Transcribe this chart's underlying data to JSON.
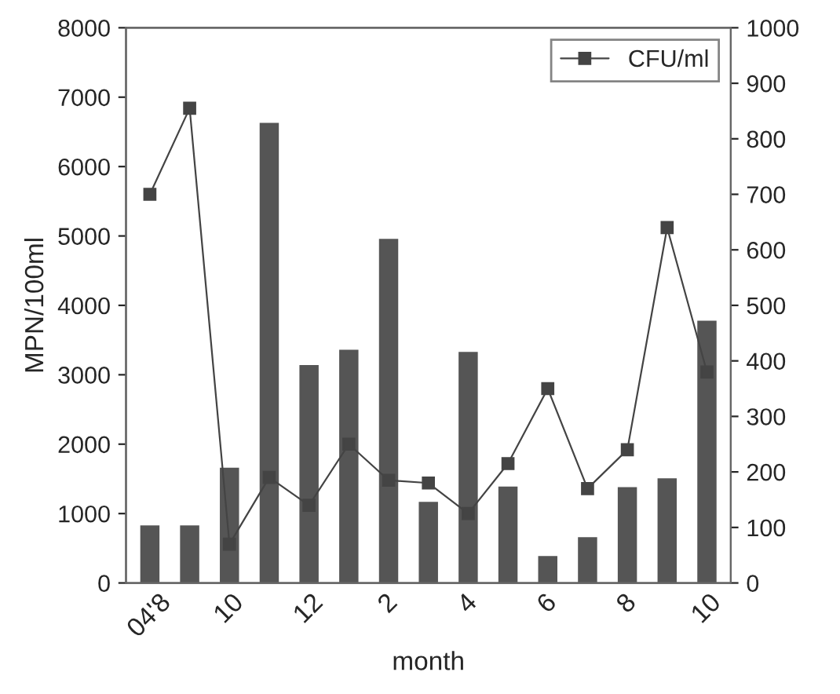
{
  "chart_data": {
    "type": "bar",
    "xlabel": "month",
    "ylabel": "MPN/100ml",
    "categories": [
      "04'8",
      null,
      "10",
      null,
      "12",
      null,
      "2",
      null,
      "4",
      null,
      "6",
      null,
      "8",
      null,
      "10"
    ],
    "ylim": [
      0,
      8000
    ],
    "yticks": [
      0,
      1000,
      2000,
      3000,
      4000,
      5000,
      6000,
      7000,
      8000
    ],
    "y2lim": [
      0,
      1000
    ],
    "y2ticks": [
      0,
      100,
      200,
      300,
      400,
      500,
      600,
      700,
      800,
      900,
      1000
    ],
    "series": [
      {
        "color": "#555555",
        "values": [
          820,
          820,
          1650,
          6620,
          3130,
          3350,
          4950,
          1160,
          3320,
          1380,
          380,
          650,
          1370,
          1500,
          3770
        ]
      },
      {
        "name": "CFU/ml",
        "type": "line",
        "axis": "y2",
        "color": "#444444",
        "values": [
          700,
          855,
          70,
          190,
          140,
          250,
          185,
          180,
          125,
          215,
          350,
          170,
          240,
          640,
          380
        ]
      }
    ],
    "marker": "square",
    "line_style": "solid",
    "legend": "top right",
    "grid": false
  }
}
